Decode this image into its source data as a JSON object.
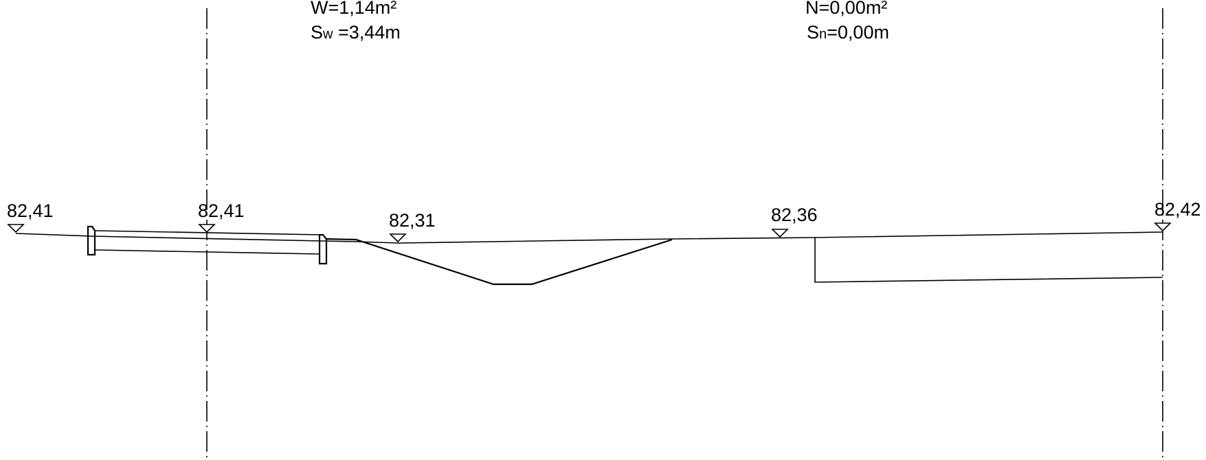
{
  "area_labels": {
    "left": {
      "area_text": "W=1,14m²",
      "length_prefix": "S",
      "length_sub": "w",
      "length_value": " =3,44m"
    },
    "right": {
      "area_text": "N=0,00m²",
      "length_prefix": "S",
      "length_sub": "n",
      "length_value": "=0,00m"
    }
  },
  "elevations": [
    {
      "label": "82,41"
    },
    {
      "label": "82,41"
    },
    {
      "label": "82,31"
    },
    {
      "label": "82,36"
    },
    {
      "label": "82,42"
    }
  ],
  "colors": {
    "line": "#000000",
    "background": "#ffffff"
  }
}
